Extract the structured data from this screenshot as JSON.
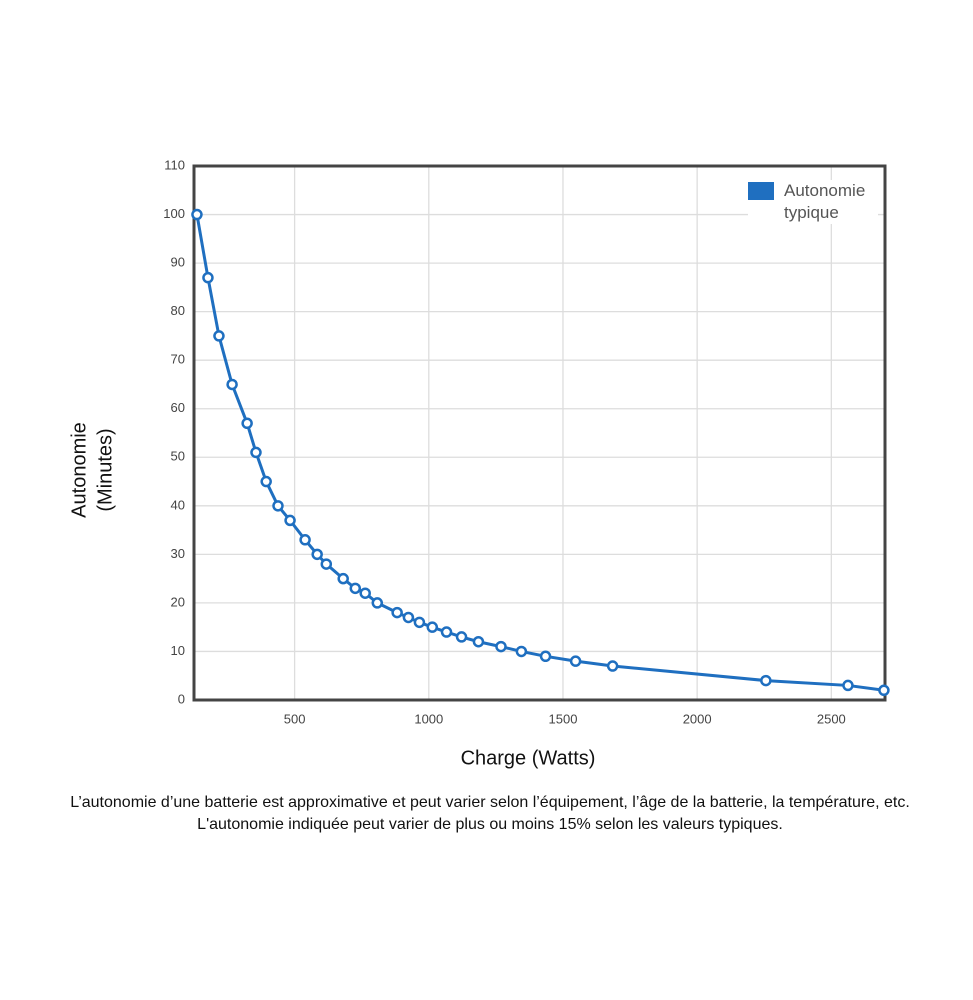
{
  "chart_data": {
    "type": "line",
    "xlabel": "Charge (Watts)",
    "ylabel": [
      "Autonomie",
      "(Minutes)"
    ],
    "x": [
      136,
      177,
      218,
      267,
      323,
      356,
      394,
      438,
      483,
      539,
      584,
      618,
      681,
      726,
      763,
      808,
      882,
      924,
      965,
      1013,
      1066,
      1122,
      1185,
      1269,
      1345,
      1435,
      1547,
      1685,
      2256,
      2562,
      2696
    ],
    "series": [
      {
        "name": "Autonomie typique",
        "color": "#1f6fc0",
        "values": [
          100,
          87,
          75,
          65,
          57,
          51,
          45,
          40,
          37,
          33,
          30,
          28,
          25,
          23,
          22,
          20,
          18,
          17,
          16,
          15,
          14,
          13,
          12,
          11,
          10,
          9,
          8,
          7,
          4,
          3,
          2
        ]
      }
    ],
    "xlim": [
      125,
      2700
    ],
    "xticks": [
      500,
      1000,
      1500,
      2000,
      2500
    ],
    "ylim": [
      0,
      110
    ],
    "yticks": [
      0,
      10,
      20,
      30,
      40,
      50,
      60,
      70,
      80,
      90,
      100,
      110
    ],
    "grid": true,
    "legend": "top-right",
    "caption": "L’autonomie d’une batterie est approximative et peut varier selon l’équipement, l’âge de la batterie, la température, etc. L'autonomie indiquée peut varier de plus ou moins 15% selon les valeurs typiques."
  }
}
